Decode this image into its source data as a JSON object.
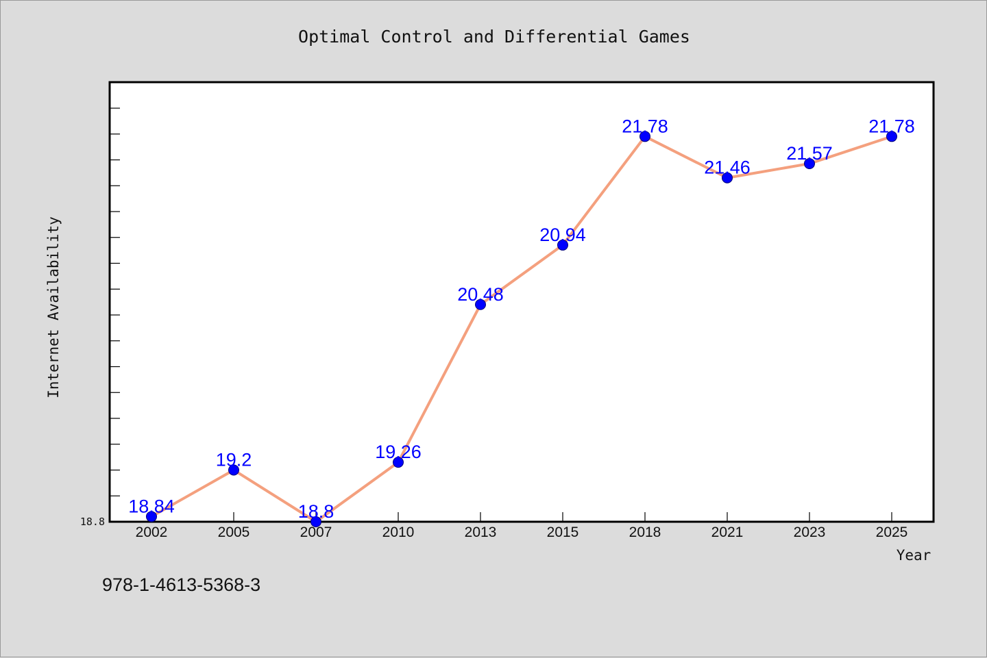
{
  "chart_data": {
    "type": "line",
    "title": "Optimal Control and Differential Games",
    "xlabel": "Year",
    "ylabel": "Internet Availability",
    "categories": [
      "2002",
      "2005",
      "2007",
      "2010",
      "2013",
      "2015",
      "2018",
      "2021",
      "2023",
      "2025"
    ],
    "series": [
      {
        "values": [
          18.84,
          19.2,
          18.8,
          19.26,
          20.48,
          20.94,
          21.78,
          21.46,
          21.57,
          21.78
        ],
        "labels": [
          "18.84",
          "19.2",
          "18.8",
          "19.26",
          "20.48",
          "20.94",
          "21.78",
          "21.46",
          "21.57",
          "21.78"
        ]
      }
    ],
    "ylim": [
      18.8,
      22.2
    ],
    "ytick_labels": [
      "18.8"
    ],
    "grid": false,
    "colors": {
      "line": "#f4a07e",
      "marker": "#0000ff",
      "data_label": "#0000ff",
      "background": "#dcdcdc",
      "plot_background": "#ffffff"
    }
  },
  "footnote": "978-1-4613-5368-3"
}
